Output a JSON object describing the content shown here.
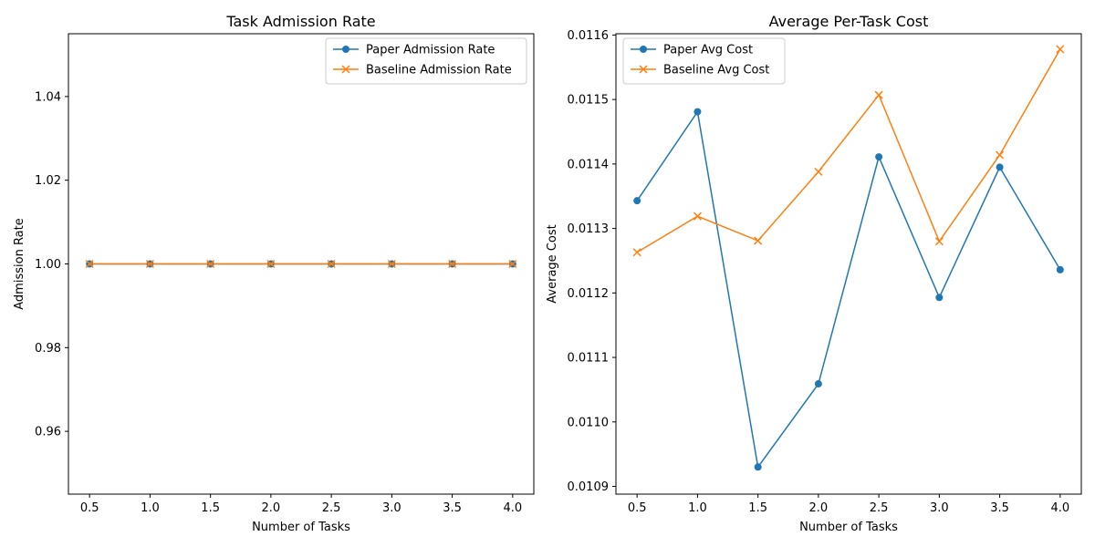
{
  "chart_data": [
    {
      "type": "line",
      "title": "Task Admission Rate",
      "xlabel": "Number of Tasks",
      "ylabel": "Admission Rate",
      "x": [
        0.5,
        1.0,
        1.5,
        2.0,
        2.5,
        3.0,
        3.5,
        4.0
      ],
      "x_ticks": [
        "0.5",
        "1.0",
        "1.5",
        "2.0",
        "2.5",
        "3.0",
        "3.5",
        "4.0"
      ],
      "xlim": [
        0.325,
        4.175
      ],
      "ylim": [
        0.945,
        1.055
      ],
      "y_ticks": [
        0.96,
        0.98,
        1.0,
        1.02,
        1.04
      ],
      "y_tick_labels": [
        "0.96",
        "0.98",
        "1.00",
        "1.02",
        "1.04"
      ],
      "legend_position": "upper-right",
      "grid": false,
      "series": [
        {
          "name": "Paper Admission Rate",
          "color": "#1f77b4",
          "marker": "circle",
          "values": [
            1,
            1,
            1,
            1,
            1,
            1,
            1,
            1
          ]
        },
        {
          "name": "Baseline Admission Rate",
          "color": "#ff7f0e",
          "marker": "x",
          "values": [
            1,
            1,
            1,
            1,
            1,
            1,
            1,
            1
          ]
        }
      ]
    },
    {
      "type": "line",
      "title": "Average Per-Task Cost",
      "xlabel": "Number of Tasks",
      "ylabel": "Average Cost",
      "x": [
        0.5,
        1.0,
        1.5,
        2.0,
        2.5,
        3.0,
        3.5,
        4.0
      ],
      "x_ticks": [
        "0.5",
        "1.0",
        "1.5",
        "2.0",
        "2.5",
        "3.0",
        "3.5",
        "4.0"
      ],
      "xlim": [
        0.325,
        4.175
      ],
      "ylim": [
        0.010888,
        0.011602
      ],
      "y_ticks": [
        0.0109,
        0.011,
        0.0111,
        0.0112,
        0.0113,
        0.0114,
        0.0115,
        0.0116
      ],
      "y_tick_labels": [
        "0.0109",
        "0.0110",
        "0.0111",
        "0.0112",
        "0.0113",
        "0.0114",
        "0.0115",
        "0.0116"
      ],
      "legend_position": "upper-left",
      "grid": false,
      "series": [
        {
          "name": "Paper Avg Cost",
          "color": "#1f77b4",
          "marker": "circle",
          "values": [
            0.011343,
            0.011481,
            0.01093,
            0.011059,
            0.011411,
            0.011193,
            0.011395,
            0.011236
          ]
        },
        {
          "name": "Baseline Avg Cost",
          "color": "#ff7f0e",
          "marker": "x",
          "values": [
            0.011263,
            0.011319,
            0.011281,
            0.011388,
            0.011507,
            0.01128,
            0.011414,
            0.011578
          ]
        }
      ]
    }
  ]
}
